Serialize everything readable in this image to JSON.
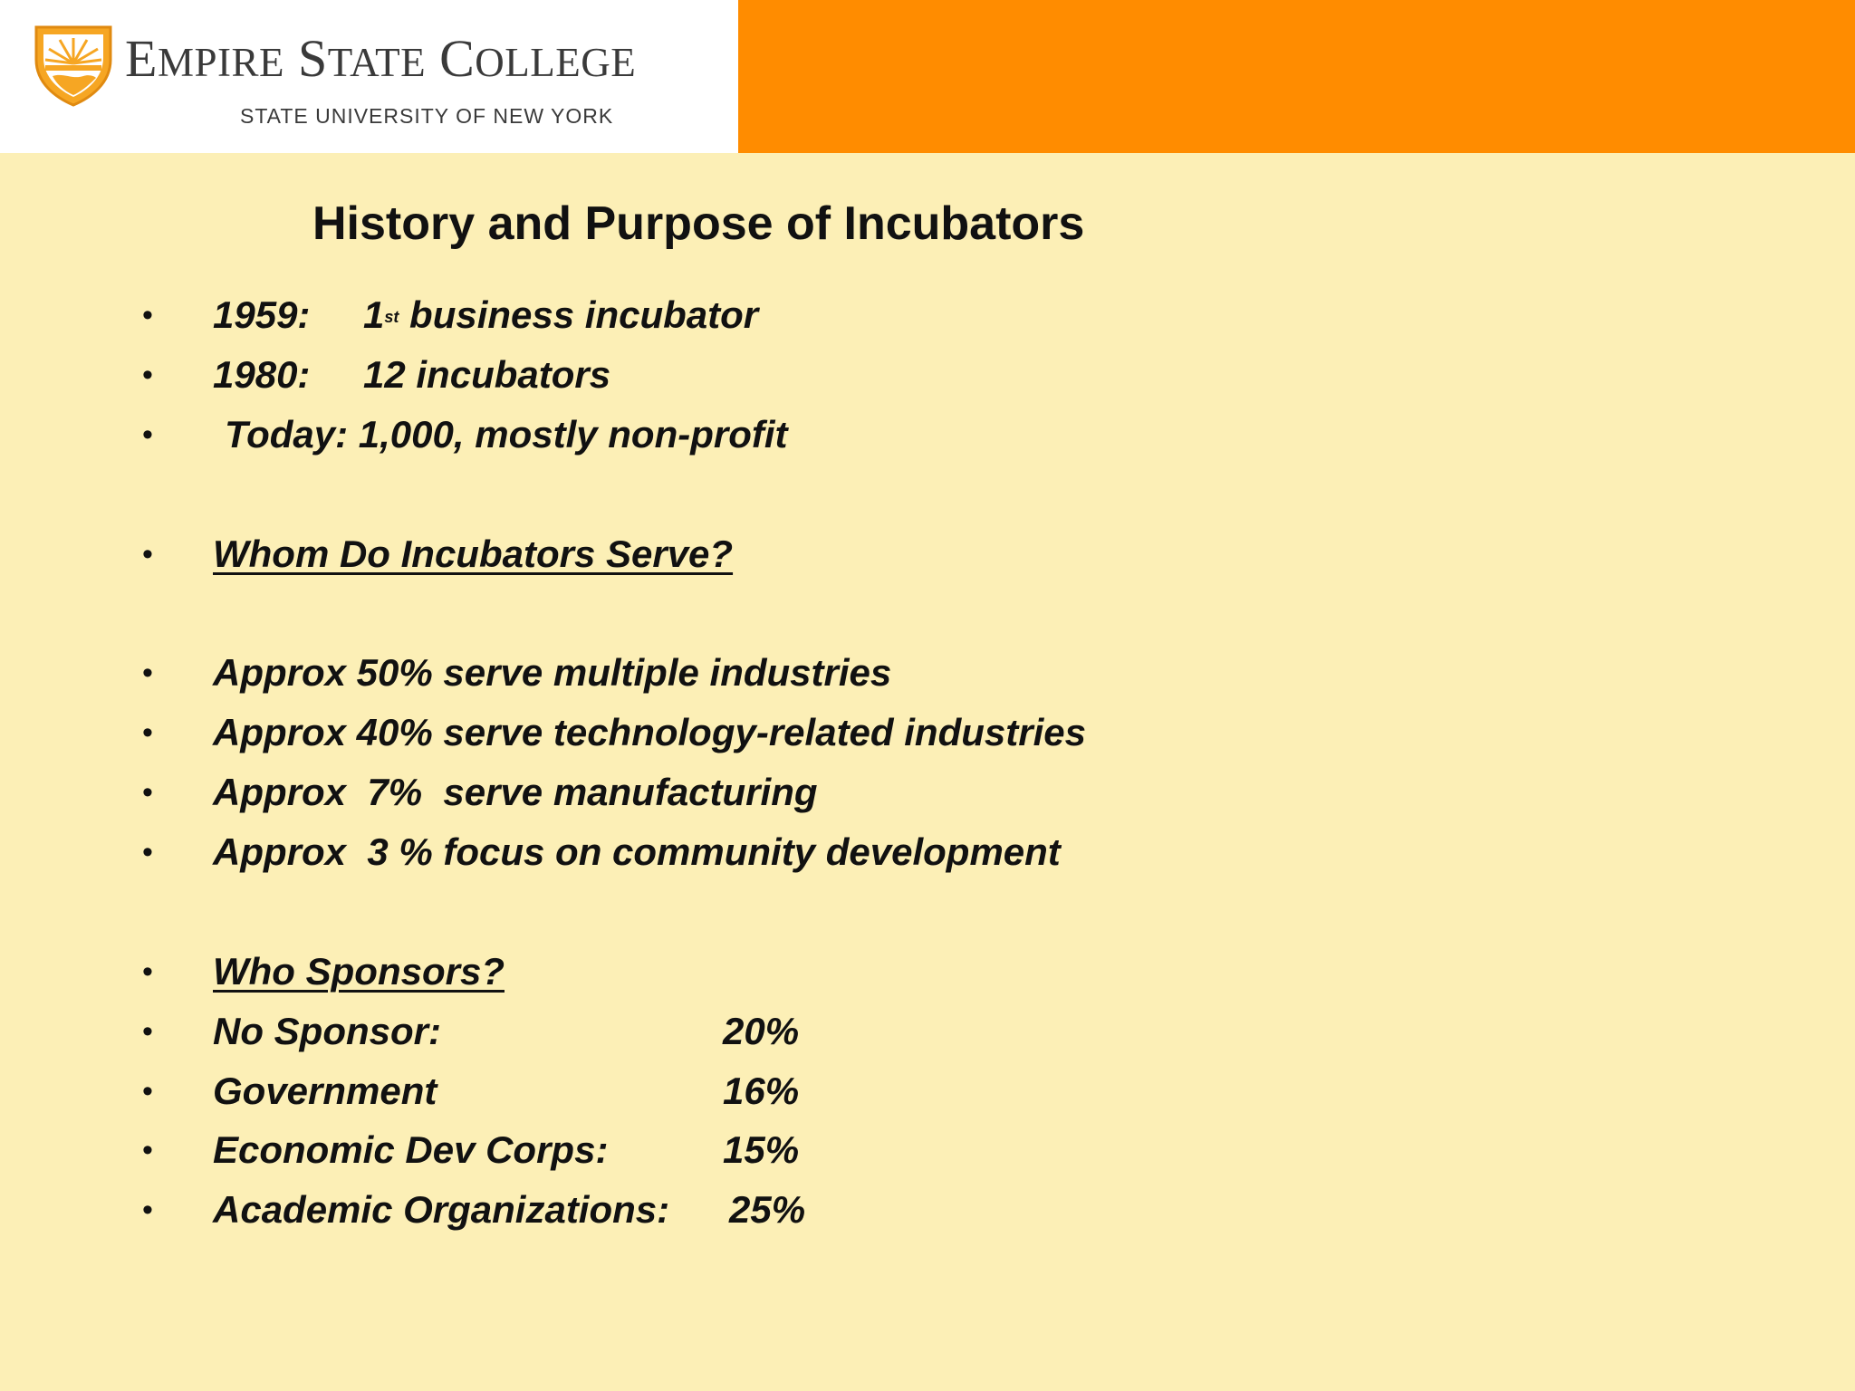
{
  "header": {
    "college_name_big1": "E",
    "college_name_small1": "MPIRE",
    "college_name_big2": "S",
    "college_name_small2": "TATE",
    "college_name_big3": "C",
    "college_name_small3": "OLLEGE",
    "college_subtitle": "STATE UNIVERSITY OF NEW YORK",
    "brand_color": "#ff8c00"
  },
  "title": "History and Purpose of Incubators",
  "history": [
    {
      "year": "1959:",
      "pre": "1",
      "sup": "st",
      "text": " business incubator"
    },
    {
      "year": "1980:",
      "text": "12 incubators"
    },
    {
      "text": "Today: 1,000, mostly non-profit"
    }
  ],
  "serve_heading": "Whom Do Incubators Serve?",
  "serve_items": [
    "Approx 50% serve multiple industries",
    "Approx 40% serve technology-related industries",
    "Approx  7%  serve manufacturing",
    "Approx  3 % focus on community development"
  ],
  "sponsor_heading": "Who Sponsors?",
  "sponsors": [
    {
      "label": "No Sponsor:",
      "value": "20%"
    },
    {
      "label": "Government",
      "value": "16%"
    },
    {
      "label": "Economic Dev Corps:",
      "value": "15%"
    },
    {
      "label": "Academic Organizations:",
      "value": "25%"
    }
  ]
}
